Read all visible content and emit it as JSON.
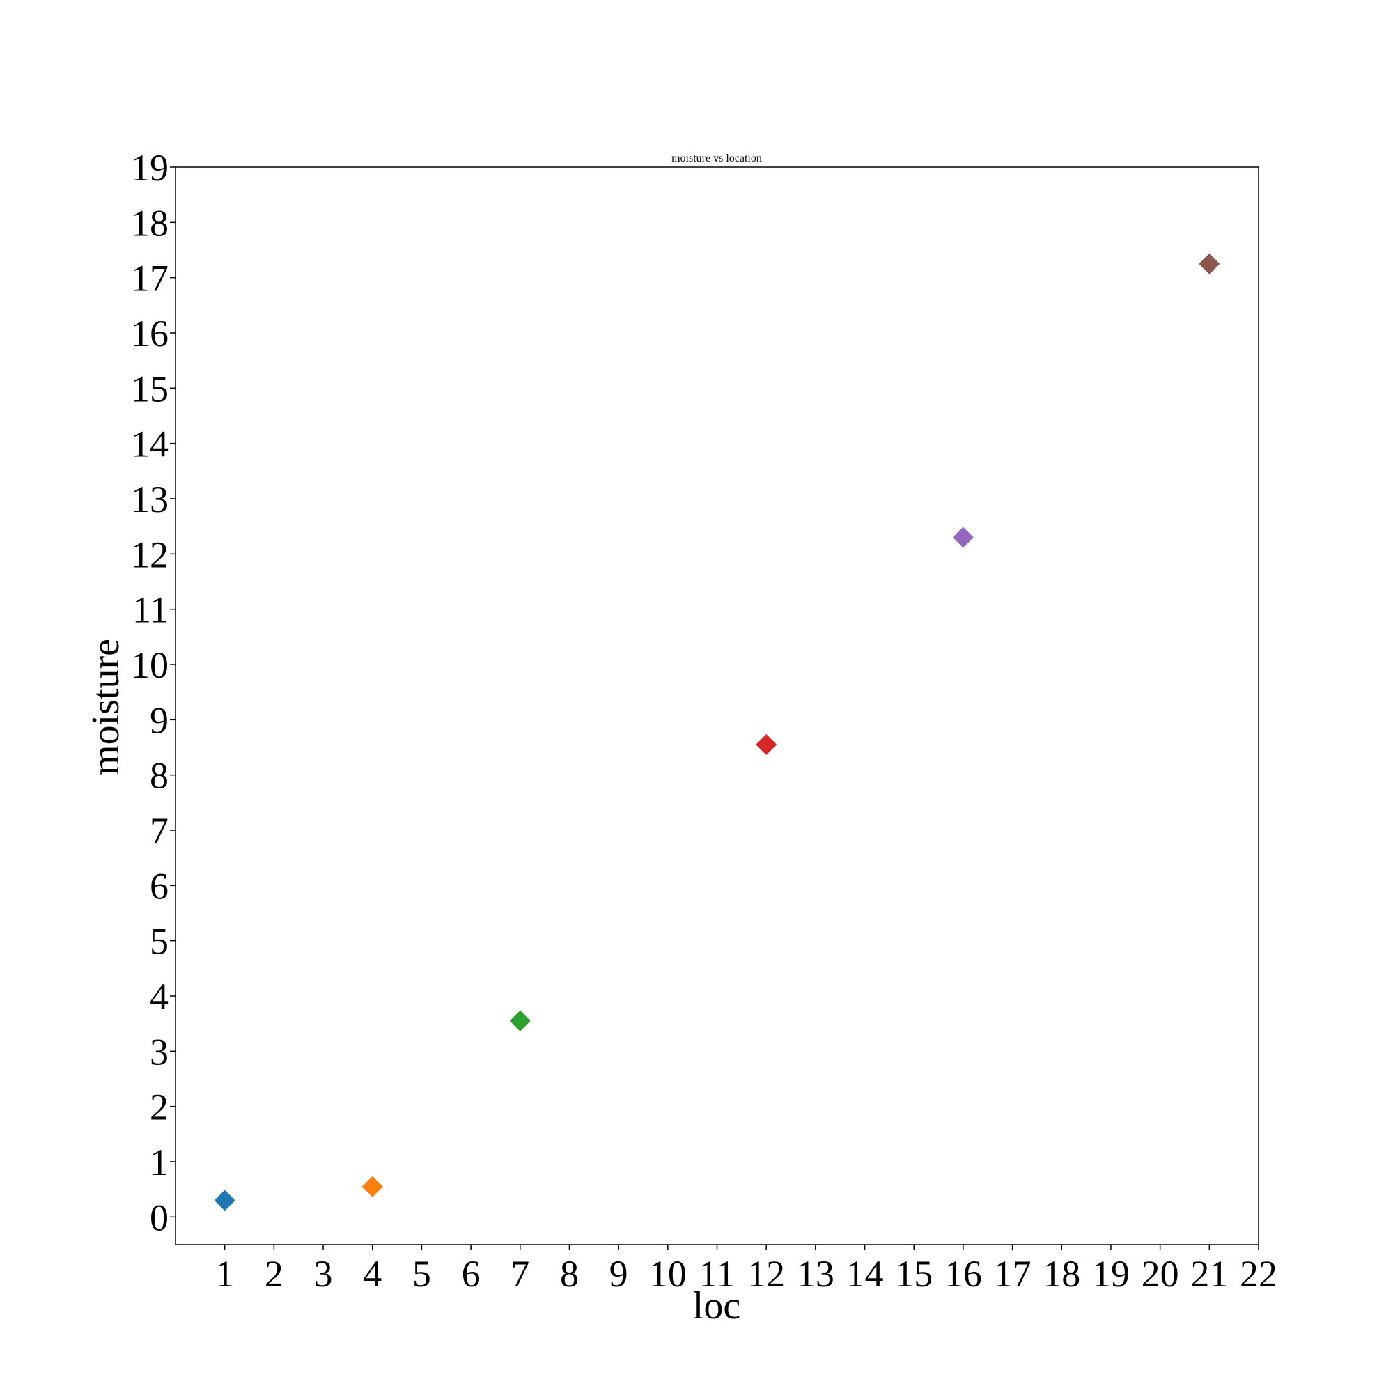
{
  "chart_data": {
    "type": "scatter",
    "title": "moisture vs location",
    "xlabel": "loc",
    "ylabel": "moisture",
    "marker": "diamond",
    "xlim": [
      0,
      22
    ],
    "ylim": [
      -0.5,
      19
    ],
    "xticks": [
      "1",
      "2",
      "3",
      "4",
      "5",
      "6",
      "7",
      "8",
      "9",
      "10",
      "11",
      "12",
      "13",
      "14",
      "15",
      "16",
      "17",
      "18",
      "19",
      "20",
      "21",
      "22"
    ],
    "yticks": [
      "0",
      "1",
      "2",
      "3",
      "4",
      "5",
      "6",
      "7",
      "8",
      "9",
      "10",
      "11",
      "12",
      "13",
      "14",
      "15",
      "16",
      "17",
      "18",
      "19"
    ],
    "grid": false,
    "points": [
      {
        "x": 1,
        "y": 0.3,
        "color": "#1f77b4"
      },
      {
        "x": 4,
        "y": 0.55,
        "color": "#ff7f0e"
      },
      {
        "x": 7,
        "y": 3.55,
        "color": "#2ca02c"
      },
      {
        "x": 12,
        "y": 8.55,
        "color": "#d62728"
      },
      {
        "x": 16,
        "y": 12.3,
        "color": "#9467bd"
      },
      {
        "x": 21,
        "y": 17.25,
        "color": "#8c564b"
      }
    ]
  }
}
